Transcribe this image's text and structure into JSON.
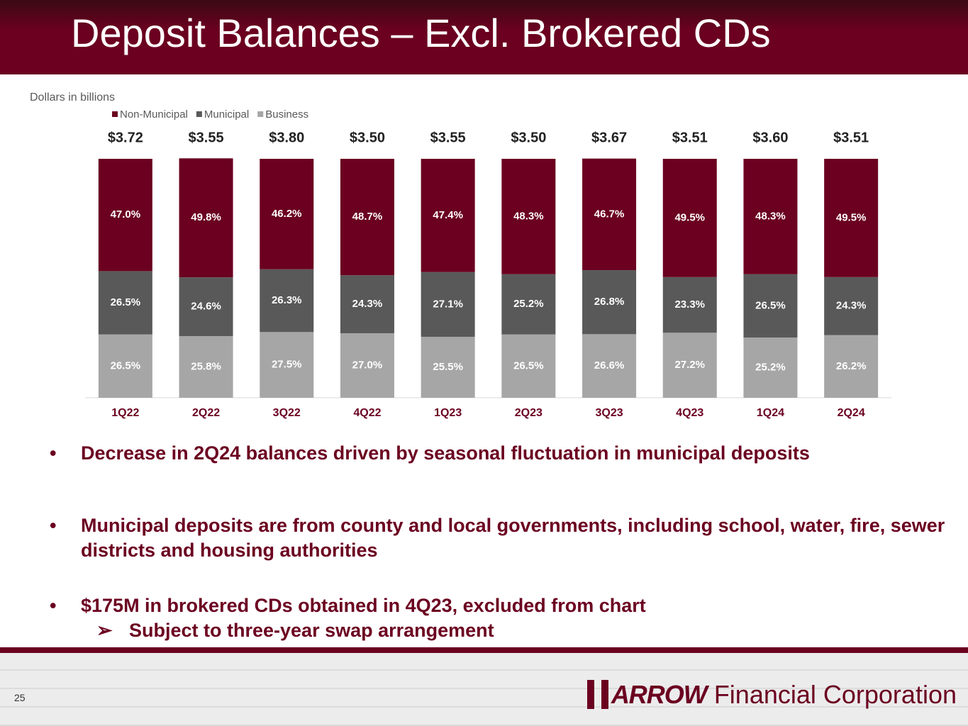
{
  "header": {
    "title": "Deposit Balances – Excl. Brokered CDs"
  },
  "chart_data": {
    "type": "stacked-bar",
    "subtitle": "Dollars in billions",
    "categories": [
      "1Q22",
      "2Q22",
      "3Q22",
      "4Q22",
      "1Q23",
      "2Q23",
      "3Q23",
      "4Q23",
      "1Q24",
      "2Q24"
    ],
    "series": [
      {
        "name": "Non-Municipal",
        "color": "#6b0020",
        "values": [
          47.0,
          49.8,
          46.2,
          48.7,
          47.4,
          48.3,
          46.7,
          49.5,
          48.3,
          49.5
        ],
        "value_labels": [
          "47.0%",
          "49.8%",
          "46.2%",
          "48.7%",
          "47.4%",
          "48.3%",
          "46.7%",
          "49.5%",
          "48.3%",
          "49.5%"
        ]
      },
      {
        "name": "Municipal",
        "color": "#595959",
        "values": [
          26.5,
          24.6,
          26.3,
          24.3,
          27.1,
          25.2,
          26.8,
          23.3,
          26.5,
          24.3
        ],
        "value_labels": [
          "26.5%",
          "24.6%",
          "26.3%",
          "24.3%",
          "27.1%",
          "25.2%",
          "26.8%",
          "23.3%",
          "26.5%",
          "24.3%"
        ]
      },
      {
        "name": "Business",
        "color": "#a6a6a6",
        "values": [
          26.5,
          25.8,
          27.5,
          27.0,
          25.5,
          26.5,
          26.6,
          27.2,
          25.2,
          26.2
        ],
        "value_labels": [
          "26.5%",
          "25.8%",
          "27.5%",
          "27.0%",
          "25.5%",
          "26.5%",
          "26.6%",
          "27.2%",
          "25.2%",
          "26.2%"
        ]
      }
    ],
    "totals": {
      "values": [
        3.72,
        3.55,
        3.8,
        3.5,
        3.55,
        3.5,
        3.67,
        3.51,
        3.6,
        3.51
      ],
      "value_labels": [
        "$3.72",
        "$3.55",
        "$3.80",
        "$3.50",
        "$3.55",
        "$3.50",
        "$3.67",
        "$3.51",
        "$3.60",
        "$3.51"
      ]
    },
    "ylim": [
      0,
      100
    ],
    "legend": "top-left"
  },
  "bullets": [
    {
      "text": "Decrease in 2Q24 balances driven by seasonal fluctuation in municipal deposits"
    },
    {
      "text": "Municipal deposits are from county and local governments, including school, water, fire, sewer districts and housing authorities"
    },
    {
      "text": "$175M in brokered CDs obtained in 4Q23, excluded from chart",
      "sub": [
        "Subject to three-year swap arrangement"
      ]
    }
  ],
  "footer": {
    "page_number": "25",
    "logo_brand": "ARROW",
    "logo_text": "Financial Corporation"
  }
}
